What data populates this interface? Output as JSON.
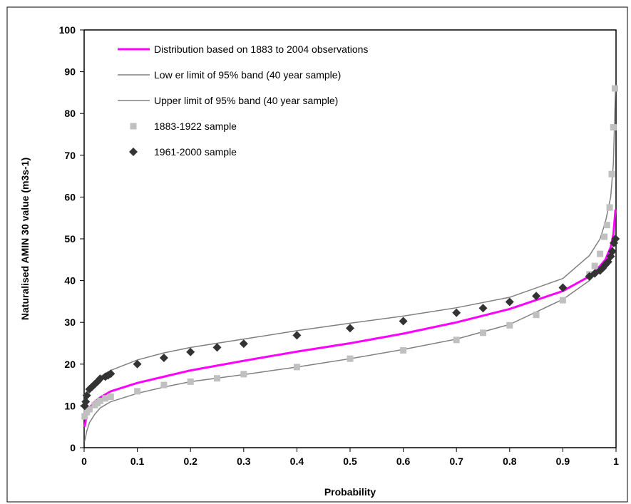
{
  "chart_data": {
    "type": "line",
    "xlabel": "Probability",
    "ylabel": "Naturalised AMIN 30 value (m3s-1)",
    "xlim": [
      0,
      1
    ],
    "ylim": [
      0,
      100
    ],
    "x_ticks": [
      "0",
      "0.1",
      "0.2",
      "0.3",
      "0.4",
      "0.5",
      "0.6",
      "0.7",
      "0.8",
      "0.9",
      "1"
    ],
    "y_ticks": [
      "0",
      "10",
      "20",
      "30",
      "40",
      "50",
      "60",
      "70",
      "80",
      "90",
      "100"
    ],
    "grid": false,
    "legend_position": "top-left",
    "series": [
      {
        "name": "Distribution based on 1883 to 2004 observations",
        "kind": "line",
        "color": "#ff00ff",
        "x": [
          0.001,
          0.005,
          0.01,
          0.02,
          0.03,
          0.05,
          0.1,
          0.15,
          0.2,
          0.3,
          0.4,
          0.5,
          0.6,
          0.7,
          0.8,
          0.9,
          0.95,
          0.97,
          0.98,
          0.99,
          0.995,
          0.999
        ],
        "y": [
          5,
          8,
          9.5,
          11,
          12,
          13.5,
          15.5,
          17,
          18.5,
          20.8,
          23,
          25,
          27.3,
          30,
          33.2,
          37.5,
          41,
          43.5,
          45,
          48,
          51,
          57
        ]
      },
      {
        "name": "Low er limit of 95% band (40 year sample)",
        "kind": "line",
        "color": "#808080",
        "x": [
          0.001,
          0.005,
          0.01,
          0.02,
          0.03,
          0.05,
          0.1,
          0.15,
          0.2,
          0.3,
          0.4,
          0.5,
          0.6,
          0.7,
          0.8,
          0.9,
          0.95,
          0.97,
          0.98,
          0.99,
          0.995,
          0.999
        ],
        "y": [
          1.5,
          4,
          6,
          8,
          9.5,
          11,
          13,
          14.5,
          15.8,
          17.5,
          19.3,
          21.3,
          23.5,
          26,
          29.5,
          35.5,
          40,
          42.5,
          44,
          46.5,
          48.5,
          51
        ]
      },
      {
        "name": "Upper limit of 95% band (40 year sample)",
        "kind": "line",
        "color": "#808080",
        "x": [
          0.001,
          0.005,
          0.01,
          0.02,
          0.03,
          0.05,
          0.1,
          0.15,
          0.2,
          0.3,
          0.4,
          0.5,
          0.6,
          0.7,
          0.8,
          0.9,
          0.95,
          0.97,
          0.98,
          0.99,
          0.995,
          0.999
        ],
        "y": [
          11,
          13,
          14.5,
          16,
          17,
          18.5,
          21,
          22.7,
          24,
          26,
          28,
          29.8,
          31.5,
          33.5,
          36,
          40.5,
          46,
          50,
          54,
          60,
          68,
          86
        ]
      },
      {
        "name": "1883-1922 sample",
        "kind": "scatter",
        "marker": "square",
        "color": "#c0c0c0",
        "x": [
          0.001,
          0.005,
          0.01,
          0.02,
          0.025,
          0.03,
          0.04,
          0.05,
          0.1,
          0.15,
          0.2,
          0.25,
          0.3,
          0.4,
          0.5,
          0.6,
          0.7,
          0.75,
          0.8,
          0.85,
          0.9,
          0.95,
          0.96,
          0.97,
          0.978,
          0.983,
          0.988,
          0.992,
          0.995,
          0.998
        ],
        "y": [
          7.5,
          8.5,
          9.2,
          10.2,
          10.7,
          11.2,
          11.8,
          12.2,
          13.5,
          15,
          15.8,
          16.6,
          17.6,
          19.3,
          21.3,
          23.3,
          25.8,
          27.5,
          29.3,
          31.8,
          35.3,
          41.5,
          43.5,
          46.4,
          50.5,
          53.3,
          57.5,
          65.5,
          76.7,
          86
        ]
      },
      {
        "name": "1961-2000 sample",
        "kind": "scatter",
        "marker": "diamond",
        "color": "#333333",
        "x": [
          0.001,
          0.003,
          0.005,
          0.01,
          0.015,
          0.02,
          0.025,
          0.03,
          0.04,
          0.045,
          0.05,
          0.1,
          0.15,
          0.2,
          0.25,
          0.3,
          0.4,
          0.5,
          0.6,
          0.7,
          0.75,
          0.8,
          0.85,
          0.9,
          0.95,
          0.96,
          0.97,
          0.975,
          0.98,
          0.985,
          0.99,
          0.993,
          0.996,
          0.999
        ],
        "y": [
          10,
          11,
          12.5,
          14,
          14.6,
          15.2,
          15.8,
          16.5,
          17,
          17.3,
          17.7,
          20,
          21.5,
          22.9,
          24,
          24.9,
          26.9,
          28.6,
          30.3,
          32.3,
          33.4,
          34.9,
          36.3,
          38.3,
          41,
          41.7,
          42.4,
          43,
          43.8,
          44.5,
          45.8,
          47,
          49,
          50
        ]
      }
    ]
  }
}
